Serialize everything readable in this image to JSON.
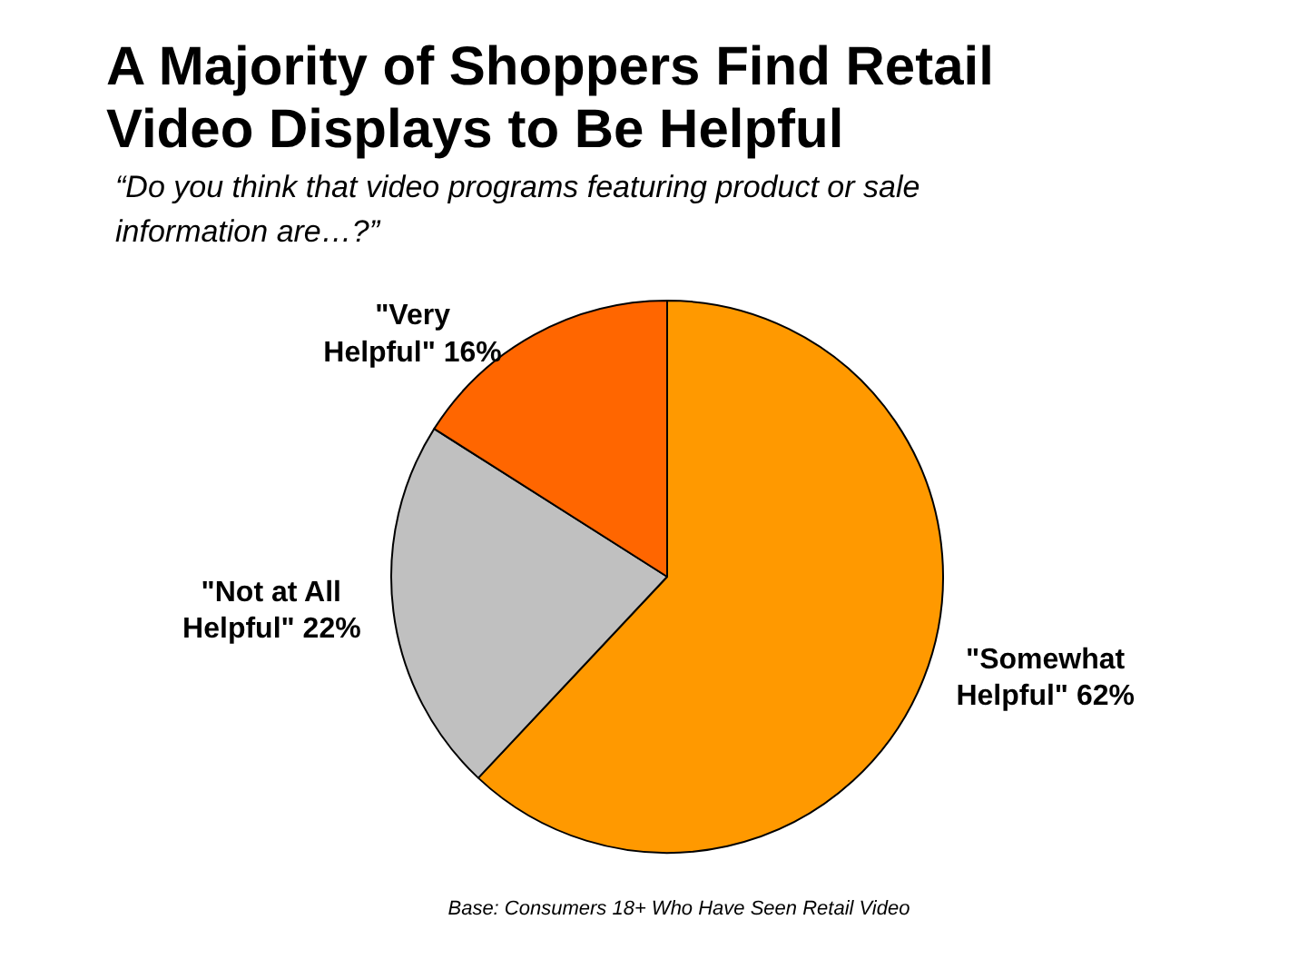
{
  "chart_data": {
    "type": "pie",
    "title": "A Majority of Shoppers Find Retail Video Displays to Be Helpful",
    "subtitle": "“Do you think that video programs featuring product or sale information are…?”",
    "categories": [
      "\"Somewhat Helpful\"",
      "\"Not at All Helpful\"",
      "\"Very Helpful\""
    ],
    "values": [
      62,
      22,
      16
    ],
    "value_labels": [
      "62%",
      "22%",
      "16%"
    ],
    "colors": [
      "#ff9900",
      "#c0c0c0",
      "#ff6600"
    ],
    "annotations": [
      "Base:  Consumers 18+ Who Have Seen Retail Video"
    ]
  }
}
